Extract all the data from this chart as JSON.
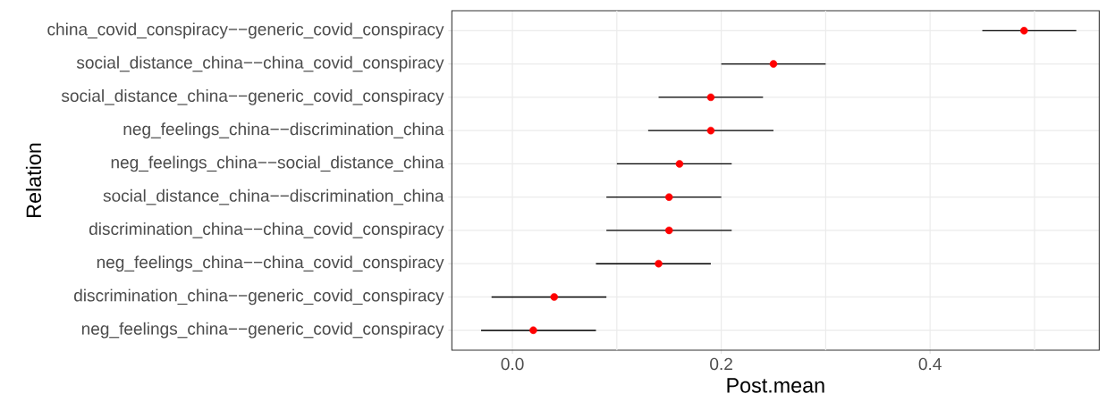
{
  "chart_data": {
    "type": "scatter",
    "orientation": "horizontal",
    "xlabel": "Post.mean",
    "ylabel": "Relation",
    "categories": [
      "china_covid_conspiracy−−generic_covid_conspiracy",
      "social_distance_china−−china_covid_conspiracy",
      "social_distance_china−−generic_covid_conspiracy",
      "neg_feelings_china−−discrimination_china",
      "neg_feelings_china−−social_distance_china",
      "social_distance_china−−discrimination_china",
      "discrimination_china−−china_covid_conspiracy",
      "neg_feelings_china−−china_covid_conspiracy",
      "discrimination_china−−generic_covid_conspiracy",
      "neg_feelings_china−−generic_covid_conspiracy"
    ],
    "values": [
      0.49,
      0.25,
      0.19,
      0.19,
      0.16,
      0.15,
      0.15,
      0.14,
      0.04,
      0.02
    ],
    "errors": [
      [
        0.45,
        0.54
      ],
      [
        0.2,
        0.3
      ],
      [
        0.14,
        0.24
      ],
      [
        0.13,
        0.25
      ],
      [
        0.1,
        0.21
      ],
      [
        0.09,
        0.2
      ],
      [
        0.09,
        0.21
      ],
      [
        0.08,
        0.19
      ],
      [
        -0.02,
        0.09
      ],
      [
        -0.03,
        0.08
      ]
    ],
    "color": "#ff0000",
    "marker": "circle",
    "grid": true,
    "xlim": [
      -0.058,
      0.562
    ],
    "xticks": [
      {
        "value": 0.0,
        "label": "0.0"
      },
      {
        "value": 0.1,
        "label": null
      },
      {
        "value": 0.2,
        "label": "0.2"
      },
      {
        "value": 0.3,
        "label": null
      },
      {
        "value": 0.4,
        "label": "0.4"
      },
      {
        "value": 0.5,
        "label": null
      }
    ]
  }
}
